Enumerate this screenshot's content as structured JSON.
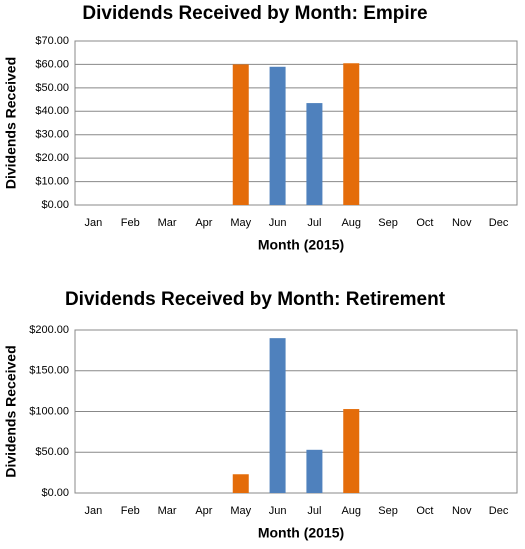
{
  "chart_data": [
    {
      "type": "bar",
      "title": "Dividends Received by Month: Empire",
      "x_label": "Month (2015)",
      "y_label": "Dividends Received",
      "categories": [
        "Jan",
        "Feb",
        "Mar",
        "Apr",
        "May",
        "Jun",
        "Jul",
        "Aug",
        "Sep",
        "Oct",
        "Nov",
        "Dec"
      ],
      "values": [
        null,
        null,
        null,
        null,
        60,
        59,
        43.5,
        60.5,
        null,
        null,
        null,
        null
      ],
      "colors": [
        null,
        null,
        null,
        null,
        "#e46c0a",
        "#4f81bd",
        "#4f81bd",
        "#e46c0a",
        null,
        null,
        null,
        null
      ],
      "ylim": [
        0,
        70
      ],
      "yticks": [
        {
          "value": 0,
          "label": "$0.00"
        },
        {
          "value": 10,
          "label": "$10.00"
        },
        {
          "value": 20,
          "label": "$20.00"
        },
        {
          "value": 30,
          "label": "$30.00"
        },
        {
          "value": 40,
          "label": "$40.00"
        },
        {
          "value": 50,
          "label": "$50.00"
        },
        {
          "value": 60,
          "label": "$60.00"
        },
        {
          "value": 70,
          "label": "$70.00"
        }
      ],
      "grid": true
    },
    {
      "type": "bar",
      "title": "Dividends Received by Month: Retirement",
      "x_label": "Month (2015)",
      "y_label": "Dividends Received",
      "categories": [
        "Jan",
        "Feb",
        "Mar",
        "Apr",
        "May",
        "Jun",
        "Jul",
        "Aug",
        "Sep",
        "Oct",
        "Nov",
        "Dec"
      ],
      "values": [
        null,
        null,
        null,
        null,
        23,
        190,
        53,
        103,
        null,
        null,
        null,
        null
      ],
      "colors": [
        null,
        null,
        null,
        null,
        "#e46c0a",
        "#4f81bd",
        "#4f81bd",
        "#e46c0a",
        null,
        null,
        null,
        null
      ],
      "ylim": [
        0,
        200
      ],
      "yticks": [
        {
          "value": 0,
          "label": "$0.00"
        },
        {
          "value": 50,
          "label": "$50.00"
        },
        {
          "value": 100,
          "label": "$100.00"
        },
        {
          "value": 150,
          "label": "$150.00"
        },
        {
          "value": 200,
          "label": "$200.00"
        }
      ],
      "grid": true
    }
  ]
}
